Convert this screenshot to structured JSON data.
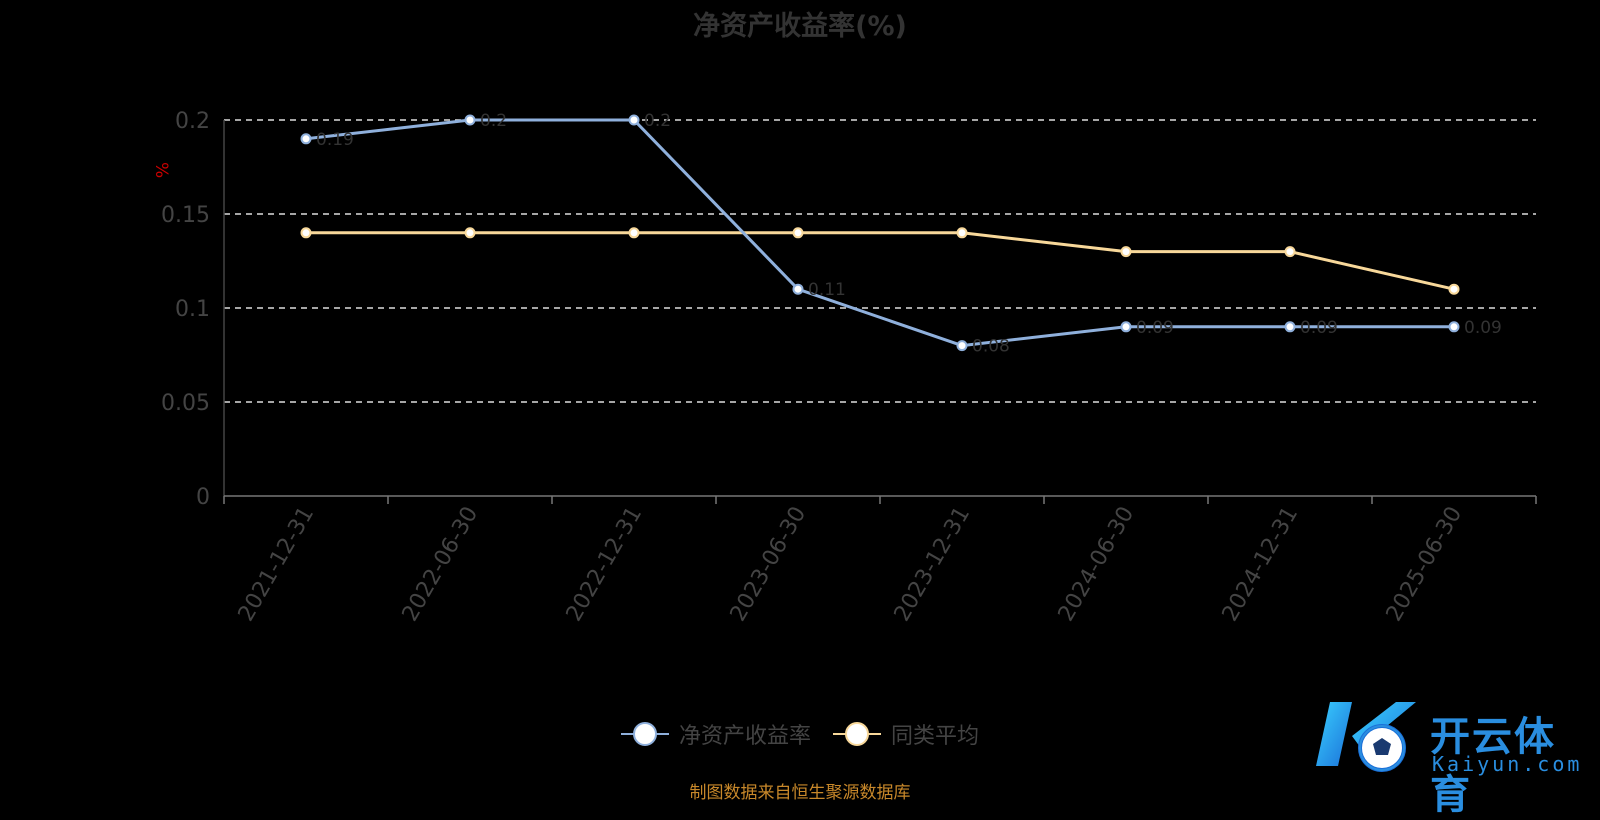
{
  "chart_data": {
    "type": "line",
    "title": "净资产收益率(%)",
    "ylabel": "%",
    "ylim": [
      0,
      0.2
    ],
    "yticks": [
      "0",
      "0.05",
      "0.1",
      "0.15",
      "0.2"
    ],
    "ytick_values": [
      0,
      0.05,
      0.1,
      0.15,
      0.2
    ],
    "categories": [
      "2021-12-31",
      "2022-06-30",
      "2022-12-31",
      "2023-06-30",
      "2023-12-31",
      "2024-06-30",
      "2024-12-31",
      "2025-06-30"
    ],
    "grid": true,
    "legend_position": "bottom",
    "series": [
      {
        "name": "净资产收益率",
        "color": "#8fb0dc",
        "values": [
          0.19,
          0.2,
          0.2,
          0.11,
          0.08,
          0.09,
          0.09,
          0.09
        ],
        "labels": [
          "0.19",
          "0.2",
          "0.2",
          "0.11",
          "0.08",
          "0.09",
          "0.09",
          "0.09"
        ]
      },
      {
        "name": "同类平均",
        "color": "#f8d89a",
        "values": [
          0.14,
          0.14,
          0.14,
          0.14,
          0.14,
          0.13,
          0.13,
          0.11
        ]
      }
    ]
  },
  "legend": {
    "items": [
      {
        "label": "净资产收益率",
        "color": "#8fb0dc"
      },
      {
        "label": "同类平均",
        "color": "#f8d89a"
      }
    ]
  },
  "source_note": "制图数据来自恒生聚源数据库",
  "watermark": {
    "cn": "开云体育",
    "en": "Kaiyun.com"
  }
}
